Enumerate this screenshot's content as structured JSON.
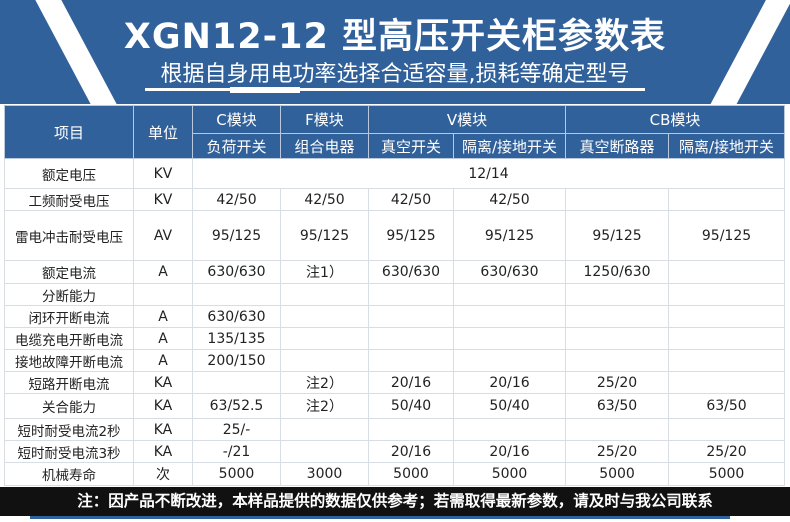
{
  "header": {
    "title": "XGN12-12 型高压开关柜参数表",
    "subtitle": "根据自身用电功率选择合适容量,损耗等确定型号"
  },
  "table": {
    "col_item": "项目",
    "col_unit": "单位",
    "groups": [
      "C模块",
      "F模块",
      "V模块",
      "CB模块"
    ],
    "subs": [
      "负荷开关",
      "组合电器",
      "真空开关",
      "隔离/接地开关",
      "真空断路器",
      "隔离/接地开关"
    ],
    "rated_voltage": {
      "item": "额定电压",
      "unit": "KV",
      "value": "12/14"
    },
    "rows": [
      [
        "工频耐受电压",
        "KV",
        "42/50",
        "42/50",
        "42/50",
        "42/50",
        "",
        ""
      ],
      [
        "雷电冲击耐受电压",
        "AV",
        "95/125",
        "95/125",
        "95/125",
        "95/125",
        "95/125",
        "95/125"
      ],
      [
        "额定电流",
        "A",
        "630/630",
        "注1）",
        "630/630",
        "630/630",
        "1250/630",
        ""
      ],
      [
        "分断能力",
        "",
        "",
        "",
        "",
        "",
        "",
        ""
      ],
      [
        "闭环开断电流",
        "A",
        "630/630",
        "",
        "",
        "",
        "",
        ""
      ],
      [
        "电缆充电开断电流",
        "A",
        "135/135",
        "",
        "",
        "",
        "",
        ""
      ],
      [
        "接地故障开断电流",
        "A",
        "200/150",
        "",
        "",
        "",
        "",
        ""
      ],
      [
        "短路开断电流",
        "KA",
        "",
        "注2）",
        "20/16",
        "20/16",
        "25/20",
        ""
      ],
      [
        "关合能力",
        "KA",
        "63/52.5",
        "注2）",
        "50/40",
        "50/40",
        "63/50",
        "63/50"
      ],
      [
        "短时耐受电流2秒",
        "KA",
        "25/-",
        "",
        "",
        "",
        "",
        ""
      ],
      [
        "短时耐受电流3秒",
        "KA",
        "-/21",
        "",
        "20/16",
        "20/16",
        "25/20",
        "25/20"
      ],
      [
        "机械寿命",
        "次",
        "5000",
        "3000",
        "5000",
        "5000",
        "5000",
        "5000"
      ]
    ]
  },
  "footer": {
    "note": "注：因产品不断改进，本样品提供的数据仅供参考；若需取得最新参数，请及时与我公司联系"
  }
}
